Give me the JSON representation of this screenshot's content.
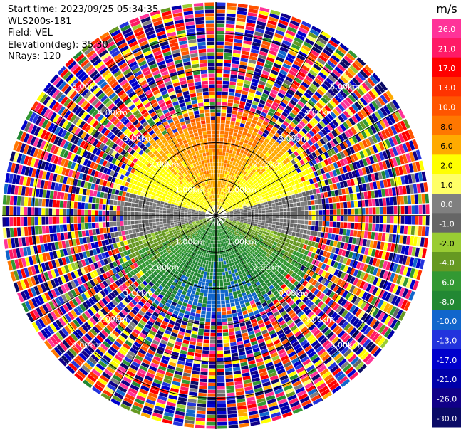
{
  "info": {
    "start_time": "Start time: 2023/09/25 05:34:35",
    "instrument": "WLS200s-181",
    "field": "Field: VEL",
    "elevation": "Elevation(deg): 35.30",
    "nrays": "NRays: 120"
  },
  "chart_data": {
    "type": "polar-ppi",
    "field": "VEL",
    "units": "m/s",
    "elevation_deg": 35.3,
    "nrays": 120,
    "range_rings_km": [
      1.0,
      2.0,
      3.0,
      4.0,
      5.0
    ],
    "ring_labels": [
      "1.00km",
      "2.00km",
      "3.00km",
      "4.00km",
      "5.00km"
    ],
    "max_range_km": 5.85,
    "colorbar": {
      "ticks": [
        "26.0",
        "21.0",
        "17.0",
        "13.0",
        "10.0",
        "8.0",
        "6.0",
        "2.0",
        "1.0",
        "0.0",
        "-1.0",
        "-2.0",
        "-4.0",
        "-6.0",
        "-8.0",
        "-10.0",
        "-13.0",
        "-17.0",
        "-21.0",
        "-26.0",
        "-30.0"
      ],
      "colors": [
        "#ff3399",
        "#ff1a66",
        "#ff0000",
        "#ff3300",
        "#ff5500",
        "#ff7700",
        "#ffaa00",
        "#ffff00",
        "#ffff66",
        "#808080",
        "#666666",
        "#99cc33",
        "#669922",
        "#339933",
        "#228833",
        "#1166cc",
        "#2233dd",
        "#0000cc",
        "#0000aa",
        "#110088",
        "#0a0a66"
      ]
    },
    "velocity_pattern": {
      "north_sector_ms": 8.0,
      "south_sector_ms": -8.0,
      "east_west_ms": 0.0,
      "noisy_beyond_km": 2.9
    }
  }
}
